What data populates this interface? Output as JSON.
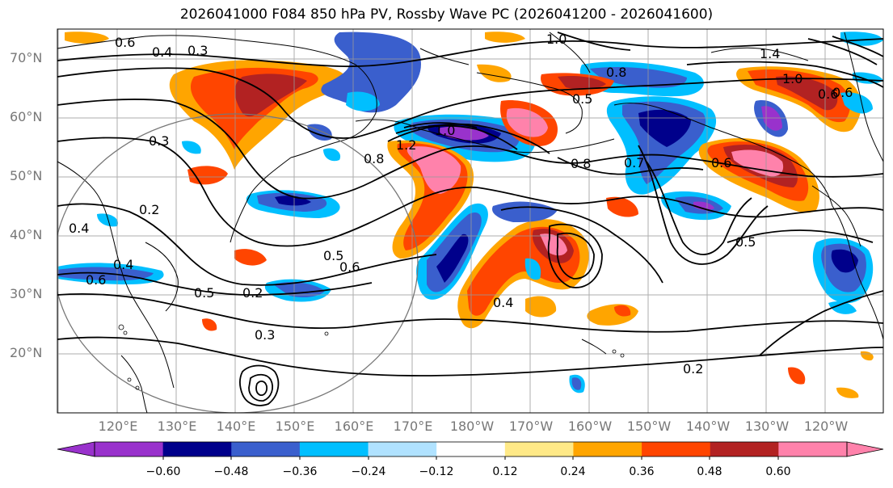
{
  "title": "2026041000 F084 850 hPa PV, Rossby Wave PC (2026041200 - 2026041600)",
  "lat_labels": [
    "70°N",
    "60°N",
    "50°N",
    "40°N",
    "30°N",
    "20°N"
  ],
  "lon_labels": [
    "120°E",
    "130°E",
    "140°E",
    "150°E",
    "160°E",
    "170°E",
    "180°W",
    "170°W",
    "160°W",
    "150°W",
    "140°W",
    "130°W",
    "120°W"
  ],
  "colorbar": {
    "tick_labels": [
      "−0.60",
      "−0.48",
      "−0.36",
      "−0.24",
      "−0.12",
      "0.12",
      "0.24",
      "0.36",
      "0.48",
      "0.60"
    ],
    "colors": [
      "#9932cc",
      "#00008b",
      "#3a5fcd",
      "#00bfff",
      "#b0e2ff",
      "#ffffff",
      "#ffe987",
      "#ffa500",
      "#ff4500",
      "#b22222",
      "#ff82ab"
    ]
  },
  "contour_labels": [
    "0.6",
    "0.4",
    "0.3",
    "1.0",
    "1.4",
    "1.0",
    "0.6",
    "0.8",
    "0.5",
    "1.0",
    "1.2",
    "0.8",
    "0.8",
    "0.7",
    "0.6",
    "0.3",
    "0.2",
    "0.4",
    "0.4",
    "0.6",
    "0.5",
    "0.5",
    "0.6",
    "0.2",
    "0.3",
    "0.4",
    "0.5",
    "0.2",
    "0.6"
  ]
}
